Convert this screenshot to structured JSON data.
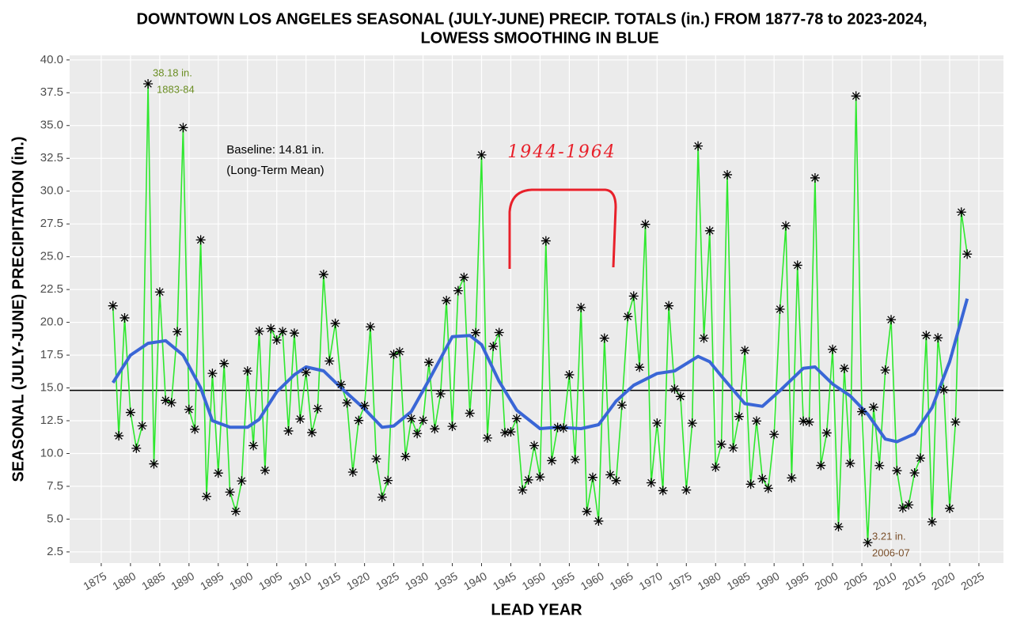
{
  "chart_data": {
    "type": "line",
    "title": [
      "DOWNTOWN LOS ANGELES SEASONAL (JULY-JUNE) PRECIP. TOTALS (in.) FROM 1877-78 to 2023-2024,",
      "LOWESS SMOOTHING IN BLUE"
    ],
    "x_label": "LEAD YEAR",
    "y_label": "SEASONAL (JULY-JUNE) PRECIPITATION (in.)",
    "xlim": [
      1869.6,
      2029.2
    ],
    "ylim": [
      1.65,
      40.35
    ],
    "xticks": [
      1875,
      1880,
      1885,
      1890,
      1895,
      1900,
      1905,
      1910,
      1915,
      1920,
      1925,
      1930,
      1935,
      1940,
      1945,
      1950,
      1955,
      1960,
      1965,
      1970,
      1975,
      1980,
      1985,
      1990,
      1995,
      2000,
      2005,
      2010,
      2015,
      2020,
      2025
    ],
    "yticks": [
      2.5,
      {
        "value": 5,
        "label": "5.0"
      },
      7.5,
      {
        "value": 10,
        "label": "10.0"
      },
      12.5,
      {
        "value": 15,
        "label": "15.0"
      },
      17.5,
      {
        "value": 20,
        "label": "20.0"
      },
      22.5,
      {
        "value": 25,
        "label": "25.0"
      },
      27.5,
      {
        "value": 30,
        "label": "30.0"
      },
      32.5,
      {
        "value": 35,
        "label": "35.0"
      },
      37.5,
      {
        "value": 40,
        "label": "40.0"
      }
    ],
    "grid": true,
    "x": [
      1877,
      1878,
      1879,
      1880,
      1881,
      1882,
      1883,
      1884,
      1885,
      1886,
      1887,
      1888,
      1889,
      1890,
      1891,
      1892,
      1893,
      1894,
      1895,
      1896,
      1897,
      1898,
      1899,
      1900,
      1901,
      1902,
      1903,
      1904,
      1905,
      1906,
      1907,
      1908,
      1909,
      1910,
      1911,
      1912,
      1913,
      1914,
      1915,
      1916,
      1917,
      1918,
      1919,
      1920,
      1921,
      1922,
      1923,
      1924,
      1925,
      1926,
      1927,
      1928,
      1929,
      1930,
      1931,
      1932,
      1933,
      1934,
      1935,
      1936,
      1937,
      1938,
      1939,
      1940,
      1941,
      1942,
      1943,
      1944,
      1945,
      1946,
      1947,
      1948,
      1949,
      1950,
      1951,
      1952,
      1953,
      1954,
      1955,
      1956,
      1957,
      1958,
      1959,
      1960,
      1961,
      1962,
      1963,
      1964,
      1965,
      1966,
      1967,
      1968,
      1969,
      1970,
      1971,
      1972,
      1973,
      1974,
      1975,
      1976,
      1977,
      1978,
      1979,
      1980,
      1981,
      1982,
      1983,
      1984,
      1985,
      1986,
      1987,
      1988,
      1989,
      1990,
      1991,
      1992,
      1993,
      1994,
      1995,
      1996,
      1997,
      1998,
      1999,
      2000,
      2001,
      2002,
      2003,
      2004,
      2005,
      2006,
      2007,
      2008,
      2009,
      2010,
      2011,
      2012,
      2013,
      2014,
      2015,
      2016,
      2017,
      2018,
      2019,
      2020,
      2021,
      2022,
      2023
    ],
    "series": [
      {
        "color": "#2ee82e",
        "marker_color": "#000000",
        "values": [
          21.26,
          11.35,
          20.34,
          13.13,
          10.4,
          12.11,
          38.18,
          9.21,
          22.31,
          14.05,
          13.87,
          19.28,
          34.84,
          13.36,
          11.85,
          26.28,
          6.73,
          16.11,
          8.51,
          16.86,
          7.06,
          5.59,
          7.91,
          16.29,
          10.6,
          19.32,
          8.72,
          19.52,
          18.65,
          19.3,
          11.72,
          19.18,
          12.63,
          16.18,
          11.6,
          13.42,
          23.65,
          17.05,
          19.92,
          15.26,
          13.86,
          8.58,
          12.52,
          13.65,
          19.66,
          9.59,
          6.67,
          7.94,
          17.56,
          17.76,
          9.77,
          12.66,
          11.52,
          12.53,
          16.95,
          11.88,
          14.55,
          21.66,
          12.07,
          22.41,
          23.43,
          13.07,
          19.21,
          32.76,
          11.18,
          18.17,
          19.22,
          11.59,
          11.65,
          12.66,
          7.22,
          7.99,
          10.6,
          8.21,
          26.21,
          9.46,
          11.99,
          11.94,
          16.0,
          9.54,
          21.13,
          5.58,
          8.18,
          4.85,
          18.79,
          8.38,
          7.93,
          13.69,
          20.44,
          22.0,
          16.58,
          27.47,
          7.77,
          12.32,
          7.17,
          21.26,
          14.92,
          14.35,
          7.22,
          12.31,
          33.44,
          18.79,
          26.98,
          8.96,
          10.71,
          31.25,
          10.43,
          12.82,
          17.86,
          7.66,
          12.48,
          8.08,
          7.35,
          11.46,
          21.0,
          27.36,
          8.14,
          24.35,
          12.46,
          12.4,
          31.01,
          9.09,
          11.57,
          17.94,
          4.42,
          16.49,
          9.25,
          37.25,
          13.19,
          3.21,
          13.53,
          9.08,
          16.36,
          20.2,
          8.69,
          5.85,
          6.08,
          8.52,
          9.65,
          19.0,
          4.79,
          18.82,
          14.86,
          5.82,
          12.4,
          28.4,
          25.2
        ]
      }
    ],
    "lowess": {
      "color": "#3a66d6",
      "x": [
        1877,
        1880,
        1883,
        1886,
        1889,
        1892,
        1894,
        1897,
        1900,
        1902,
        1905,
        1908,
        1910,
        1913,
        1916,
        1920,
        1923,
        1925,
        1928,
        1931,
        1935,
        1938,
        1940,
        1943,
        1946,
        1950,
        1953,
        1957,
        1960,
        1963,
        1966,
        1970,
        1973,
        1977,
        1979,
        1981,
        1985,
        1988,
        1991,
        1995,
        1997,
        2000,
        2003,
        2006,
        2009,
        2011,
        2014,
        2017,
        2020,
        2023
      ],
      "values": [
        15.4,
        17.5,
        18.4,
        18.6,
        17.5,
        15.0,
        12.5,
        12.0,
        12.0,
        12.6,
        14.7,
        16.0,
        16.6,
        16.3,
        15.0,
        13.4,
        12.0,
        12.1,
        13.2,
        15.6,
        18.9,
        19.0,
        18.3,
        15.5,
        13.3,
        11.9,
        12.0,
        11.9,
        12.2,
        14.0,
        15.2,
        16.1,
        16.3,
        17.4,
        17.0,
        15.9,
        13.8,
        13.6,
        14.8,
        16.5,
        16.6,
        15.3,
        14.4,
        13.0,
        11.1,
        10.9,
        11.5,
        13.5,
        17.0,
        21.8
      ]
    },
    "baseline": {
      "value": 14.81,
      "color": "#000000"
    },
    "annotations": {
      "max": [
        "38.18 in.",
        "1883-84"
      ],
      "min": [
        "3.21 in.",
        "2006-07"
      ],
      "baseline": [
        "Baseline: 14.81 in.",
        "(Long-Term Mean)"
      ],
      "period": "1944-1964"
    }
  }
}
